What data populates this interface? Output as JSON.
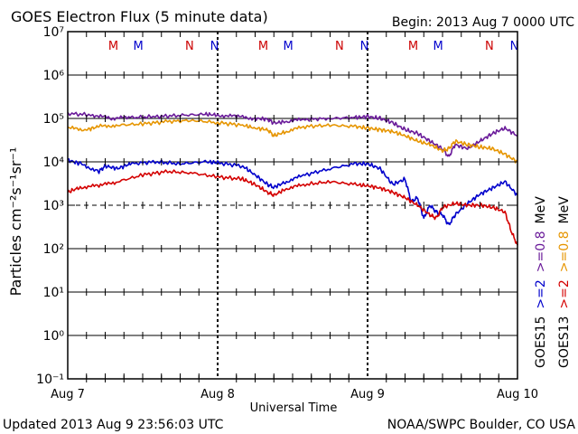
{
  "header": {
    "title": "GOES Electron Flux (5 minute data)",
    "begin": "Begin: 2013 Aug 7 0000 UTC"
  },
  "footer": {
    "updated": "Updated 2013 Aug  9 23:56:03 UTC",
    "source": "NOAA/SWPC Boulder, CO USA"
  },
  "chart_data": {
    "type": "line",
    "yscale": "log",
    "title": "GOES Electron Flux (5 minute data)",
    "xlabel": "Universal Time",
    "ylabel": "Particles cm⁻²s⁻¹sr⁻¹",
    "xlim_hours": [
      0,
      72
    ],
    "ylim": [
      0.1,
      10000000
    ],
    "x_ticks": [
      {
        "hour": 0,
        "label": "Aug 7"
      },
      {
        "hour": 24,
        "label": "Aug 8"
      },
      {
        "hour": 48,
        "label": "Aug 9"
      },
      {
        "hour": 72,
        "label": "Aug 10"
      }
    ],
    "y_ticks": [
      {
        "exp": -1,
        "label": "10⁻¹"
      },
      {
        "exp": 0,
        "label": "10⁰"
      },
      {
        "exp": 1,
        "label": "10¹"
      },
      {
        "exp": 2,
        "label": "10²"
      },
      {
        "exp": 3,
        "label": "10³"
      },
      {
        "exp": 4,
        "label": "10⁴"
      },
      {
        "exp": 5,
        "label": "10⁵"
      },
      {
        "exp": 6,
        "label": "10⁶"
      },
      {
        "exp": 7,
        "label": "10⁷"
      }
    ],
    "threshold": {
      "value": 1000,
      "style": "dashed"
    },
    "mn_markers": [
      {
        "hour": 7.3,
        "label": "M",
        "color": "#cc0000"
      },
      {
        "hour": 11.3,
        "label": "M",
        "color": "#0000cc"
      },
      {
        "hour": 19.5,
        "label": "N",
        "color": "#cc0000"
      },
      {
        "hour": 23.5,
        "label": "N",
        "color": "#0000cc"
      },
      {
        "hour": 31.3,
        "label": "M",
        "color": "#cc0000"
      },
      {
        "hour": 35.3,
        "label": "M",
        "color": "#0000cc"
      },
      {
        "hour": 43.5,
        "label": "N",
        "color": "#cc0000"
      },
      {
        "hour": 47.5,
        "label": "N",
        "color": "#0000cc"
      },
      {
        "hour": 55.3,
        "label": "M",
        "color": "#cc0000"
      },
      {
        "hour": 59.3,
        "label": "M",
        "color": "#0000cc"
      },
      {
        "hour": 67.5,
        "label": "N",
        "color": "#cc0000"
      },
      {
        "hour": 71.5,
        "label": "N",
        "color": "#0000cc"
      }
    ],
    "series": [
      {
        "name": "GOES15 >=0.8 MeV",
        "color": "#6a1b9a",
        "points": [
          [
            0,
            130000
          ],
          [
            4,
            120000
          ],
          [
            7,
            100000
          ],
          [
            10,
            105000
          ],
          [
            14,
            110000
          ],
          [
            18,
            118000
          ],
          [
            22,
            125000
          ],
          [
            24,
            120000
          ],
          [
            27,
            110000
          ],
          [
            30,
            100000
          ],
          [
            32,
            96000
          ],
          [
            33,
            78000
          ],
          [
            35,
            85000
          ],
          [
            38,
            95000
          ],
          [
            42,
            100000
          ],
          [
            46,
            105000
          ],
          [
            48,
            110000
          ],
          [
            50,
            100000
          ],
          [
            52,
            80000
          ],
          [
            54,
            55000
          ],
          [
            56,
            45000
          ],
          [
            58,
            30000
          ],
          [
            60,
            20000
          ],
          [
            61,
            13000
          ],
          [
            62,
            25000
          ],
          [
            64,
            20000
          ],
          [
            66,
            30000
          ],
          [
            68,
            45000
          ],
          [
            70,
            60000
          ],
          [
            72,
            40000
          ]
        ]
      },
      {
        "name": "GOES13 >=0.8 MeV",
        "color": "#e69500",
        "points": [
          [
            0,
            60000
          ],
          [
            3,
            55000
          ],
          [
            5,
            65000
          ],
          [
            8,
            70000
          ],
          [
            12,
            75000
          ],
          [
            16,
            85000
          ],
          [
            20,
            90000
          ],
          [
            24,
            80000
          ],
          [
            28,
            70000
          ],
          [
            30,
            60000
          ],
          [
            32,
            55000
          ],
          [
            33,
            40000
          ],
          [
            35,
            50000
          ],
          [
            38,
            65000
          ],
          [
            42,
            70000
          ],
          [
            46,
            65000
          ],
          [
            48,
            60000
          ],
          [
            50,
            55000
          ],
          [
            52,
            50000
          ],
          [
            54,
            40000
          ],
          [
            56,
            30000
          ],
          [
            58,
            25000
          ],
          [
            60,
            18000
          ],
          [
            61,
            20000
          ],
          [
            62,
            30000
          ],
          [
            64,
            25000
          ],
          [
            66,
            22000
          ],
          [
            68,
            20000
          ],
          [
            70,
            15000
          ],
          [
            72,
            10000
          ]
        ]
      },
      {
        "name": "GOES15 >=2 MeV",
        "color": "#0000cc",
        "points": [
          [
            0,
            11000
          ],
          [
            2,
            9000
          ],
          [
            5,
            6000
          ],
          [
            6,
            8000
          ],
          [
            8,
            7000
          ],
          [
            10,
            9000
          ],
          [
            14,
            10000
          ],
          [
            18,
            9000
          ],
          [
            22,
            10000
          ],
          [
            24,
            9500
          ],
          [
            28,
            8000
          ],
          [
            30,
            5000
          ],
          [
            32,
            3000
          ],
          [
            33,
            2600
          ],
          [
            35,
            3500
          ],
          [
            38,
            5000
          ],
          [
            42,
            7000
          ],
          [
            46,
            9000
          ],
          [
            48,
            9000
          ],
          [
            50,
            7000
          ],
          [
            52,
            3000
          ],
          [
            54,
            4000
          ],
          [
            55,
            1200
          ],
          [
            56,
            1500
          ],
          [
            57,
            500
          ],
          [
            58,
            1000
          ],
          [
            59,
            700
          ],
          [
            60,
            600
          ],
          [
            61,
            350
          ],
          [
            62,
            600
          ],
          [
            64,
            1100
          ],
          [
            66,
            1800
          ],
          [
            68,
            2500
          ],
          [
            70,
            3500
          ],
          [
            72,
            1700
          ]
        ]
      },
      {
        "name": "GOES13 >=2 MeV",
        "color": "#d40000",
        "points": [
          [
            0,
            2000
          ],
          [
            2,
            2600
          ],
          [
            5,
            2800
          ],
          [
            8,
            3500
          ],
          [
            12,
            5000
          ],
          [
            16,
            6000
          ],
          [
            20,
            5500
          ],
          [
            24,
            4500
          ],
          [
            28,
            4000
          ],
          [
            30,
            3000
          ],
          [
            32,
            2000
          ],
          [
            33,
            1700
          ],
          [
            35,
            2400
          ],
          [
            38,
            3000
          ],
          [
            42,
            3500
          ],
          [
            46,
            3000
          ],
          [
            48,
            2800
          ],
          [
            50,
            2500
          ],
          [
            52,
            2000
          ],
          [
            54,
            1500
          ],
          [
            56,
            1000
          ],
          [
            58,
            600
          ],
          [
            59,
            500
          ],
          [
            60,
            900
          ],
          [
            62,
            1100
          ],
          [
            64,
            1000
          ],
          [
            66,
            1000
          ],
          [
            68,
            900
          ],
          [
            70,
            700
          ],
          [
            71,
            250
          ],
          [
            72,
            120
          ]
        ]
      }
    ],
    "legend": [
      {
        "col": "goes15",
        "label": "GOES15",
        "color": "#000000"
      },
      {
        "col": "goes15",
        "label": ">=2",
        "color": "#0000cc"
      },
      {
        "col": "goes15",
        "label": ">=0.8",
        "color": "#6a1b9a"
      },
      {
        "col": "goes15",
        "label": "MeV",
        "color": "#000000"
      },
      {
        "col": "goes13",
        "label": "GOES13",
        "color": "#000000"
      },
      {
        "col": "goes13",
        "label": ">=2",
        "color": "#d40000"
      },
      {
        "col": "goes13",
        "label": ">=0.8",
        "color": "#e69500"
      },
      {
        "col": "goes13",
        "label": "MeV",
        "color": "#000000"
      }
    ]
  }
}
